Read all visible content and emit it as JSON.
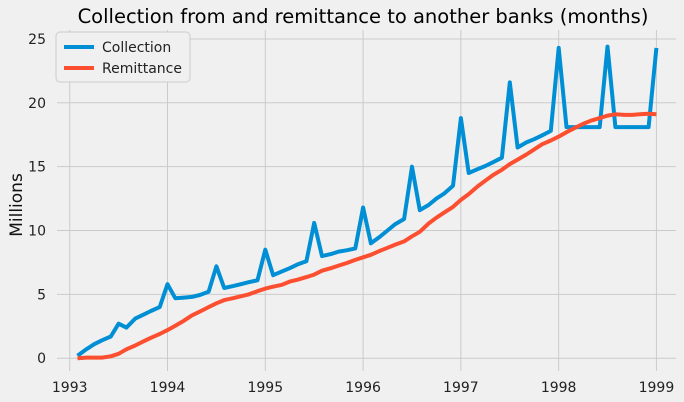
{
  "chart_data": {
    "type": "line",
    "title": "Collection from and remittance to another banks (months)",
    "xlabel": "",
    "ylabel": "Millions",
    "xlim": [
      1992.87,
      1999.2
    ],
    "ylim": [
      -1.0,
      25.7
    ],
    "x_ticks": [
      1993,
      1994,
      1995,
      1996,
      1997,
      1998,
      1999
    ],
    "y_ticks": [
      0,
      5,
      10,
      15,
      20,
      25
    ],
    "grid": true,
    "legend": {
      "position": "top-left",
      "entries": [
        "Collection",
        "Remittance"
      ]
    },
    "x": [
      1993.08,
      1993.17,
      1993.25,
      1993.33,
      1993.42,
      1993.5,
      1993.58,
      1993.67,
      1993.75,
      1993.83,
      1993.92,
      1994.0,
      1994.08,
      1994.17,
      1994.25,
      1994.33,
      1994.42,
      1994.5,
      1994.58,
      1994.67,
      1994.75,
      1994.83,
      1994.92,
      1995.0,
      1995.08,
      1995.17,
      1995.25,
      1995.33,
      1995.42,
      1995.5,
      1995.58,
      1995.67,
      1995.75,
      1995.83,
      1995.92,
      1996.0,
      1996.08,
      1996.17,
      1996.25,
      1996.33,
      1996.42,
      1996.5,
      1996.58,
      1996.67,
      1996.75,
      1996.83,
      1996.92,
      1997.0,
      1997.08,
      1997.17,
      1997.25,
      1997.33,
      1997.42,
      1997.5,
      1997.58,
      1997.67,
      1997.75,
      1997.83,
      1997.92,
      1998.0,
      1998.08,
      1998.17,
      1998.25,
      1998.33,
      1998.42,
      1998.5,
      1998.58,
      1998.67,
      1998.75,
      1998.83,
      1998.92,
      1999.0
    ],
    "series": [
      {
        "name": "Collection",
        "color": "#008fd5",
        "values": [
          0.2,
          0.7,
          1.1,
          1.4,
          1.7,
          2.7,
          2.4,
          3.1,
          3.4,
          3.7,
          4.0,
          5.8,
          4.7,
          4.75,
          4.8,
          4.95,
          5.2,
          7.2,
          5.5,
          5.65,
          5.8,
          5.95,
          6.1,
          8.5,
          6.5,
          6.8,
          7.05,
          7.35,
          7.6,
          10.6,
          8.0,
          8.15,
          8.35,
          8.45,
          8.6,
          11.8,
          9.0,
          9.5,
          10.0,
          10.5,
          10.9,
          15.0,
          11.6,
          12.0,
          12.5,
          12.9,
          13.5,
          18.8,
          14.5,
          14.8,
          15.05,
          15.35,
          15.7,
          21.6,
          16.5,
          16.9,
          17.15,
          17.45,
          17.8,
          24.3,
          18.1,
          18.1,
          18.1,
          18.1,
          18.1,
          24.4,
          18.1,
          18.1,
          18.1,
          18.1,
          18.1,
          24.3
        ]
      },
      {
        "name": "Remittance",
        "color": "#fc4f30",
        "values": [
          0.0,
          0.05,
          0.05,
          0.05,
          0.15,
          0.35,
          0.7,
          1.0,
          1.3,
          1.6,
          1.9,
          2.2,
          2.55,
          2.95,
          3.35,
          3.65,
          4.0,
          4.3,
          4.55,
          4.7,
          4.85,
          5.0,
          5.25,
          5.45,
          5.6,
          5.75,
          6.0,
          6.15,
          6.35,
          6.55,
          6.85,
          7.05,
          7.25,
          7.45,
          7.7,
          7.9,
          8.1,
          8.4,
          8.65,
          8.9,
          9.15,
          9.55,
          9.9,
          10.55,
          11.0,
          11.4,
          11.85,
          12.4,
          12.85,
          13.45,
          13.9,
          14.35,
          14.75,
          15.2,
          15.55,
          15.95,
          16.35,
          16.75,
          17.05,
          17.35,
          17.7,
          18.05,
          18.35,
          18.6,
          18.8,
          19.0,
          19.1,
          19.05,
          19.05,
          19.1,
          19.15,
          19.1
        ]
      }
    ]
  }
}
